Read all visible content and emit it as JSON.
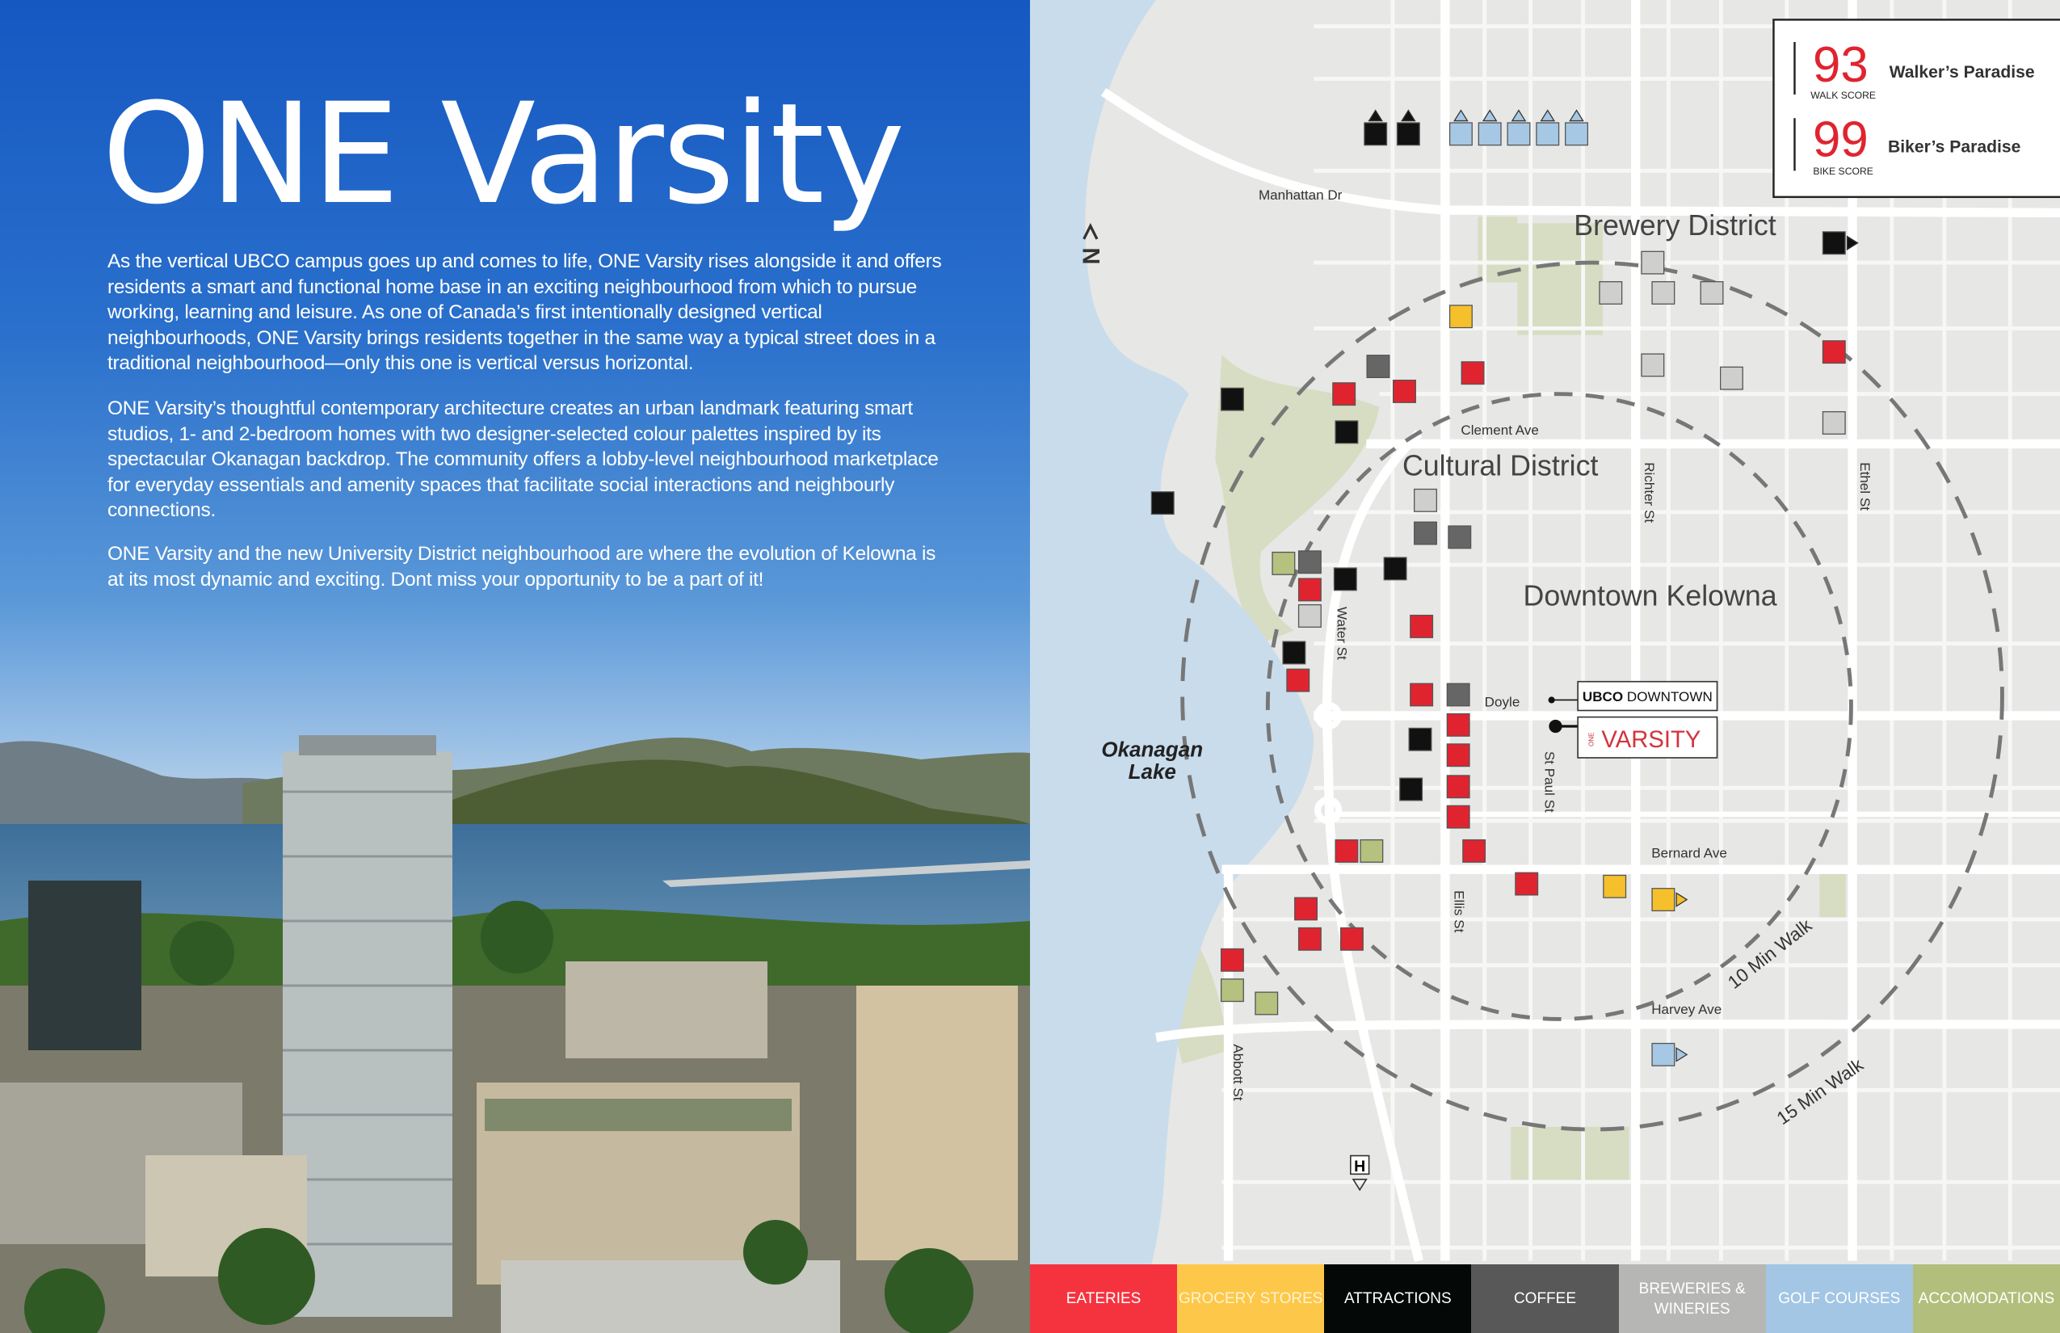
{
  "title": "ONE Varsity",
  "paragraphs": [
    "As the vertical UBCO campus goes up and comes to life, ONE Varsity rises alongside it and offers residents a smart and functional home base in an exciting neighbourhood from which to pursue working, learning and leisure. As one of Canada’s first intentionally designed vertical neighbourhoods, ONE Varsity brings residents together in the same way a typical street does in a traditional neighbourhood—only this one is vertical versus horizontal.",
    "ONE Varsity’s thoughtful contemporary architecture creates an urban landmark featuring smart studios, 1- and 2-bedroom homes with two designer-selected colour palettes inspired by its spectacular Okanagan backdrop. The community offers a lobby-level neighbourhood marketplace for everyday essentials and amenity spaces that facilitate social interactions and neighbourly connections.",
    "ONE Varsity and the new University District neighbourhood are where the evolution of Kelowna is at its most dynamic and exciting. Dont miss your opportunity to be a part of it!"
  ],
  "scores": {
    "walk": {
      "value": "93",
      "label": "WALK SCORE",
      "desc": "Walker’s Paradise"
    },
    "bike": {
      "value": "99",
      "label": "BIKE SCORE",
      "desc": "Biker’s Paradise"
    },
    "accent": "#e0242f"
  },
  "map": {
    "north": "N",
    "districts": [
      "Brewery District",
      "Cultural District",
      "Downtown Kelowna"
    ],
    "lake": [
      "Okanagan",
      "Lake"
    ],
    "streets": {
      "manhattan": "Manhattan Dr",
      "clement": "Clement Ave",
      "doyle": "Doyle",
      "bernard": "Bernard Ave",
      "harvey": "Harvey Ave",
      "richter": "Richter St",
      "ethel": "Ethel St",
      "water": "Water St",
      "stpaul": "St Paul St",
      "ellis": "Ellis St",
      "abbott": "Abbott St"
    },
    "walk10": "10 Min Walk",
    "walk15": "15 Min Walk",
    "ubco_bold": "UBCO",
    "ubco_rest": "DOWNTOWN",
    "varsity_small": "ONE",
    "varsity": "VARSITY",
    "hospital": "H"
  },
  "legend": [
    {
      "label": "EATERIES",
      "color": "#f5333f",
      "text": "#ffffff"
    },
    {
      "label": "GROCERY STORES",
      "color": "#fdc84a",
      "text": "#fff3d0"
    },
    {
      "label": "ATTRACTIONS",
      "color": "#040807",
      "text": "#ffffff"
    },
    {
      "label": "COFFEE",
      "color": "#585858",
      "text": "#ffffff"
    },
    {
      "label": "BREWERIES & WINERIES",
      "color": "#b6b6b4",
      "text": "#ffffff"
    },
    {
      "label": "GOLF COURSES",
      "color": "#a2c6e4",
      "text": "#ffffff"
    },
    {
      "label": "ACCOMODATIONS",
      "color": "#b2bf7c",
      "text": "#ffffff"
    }
  ]
}
